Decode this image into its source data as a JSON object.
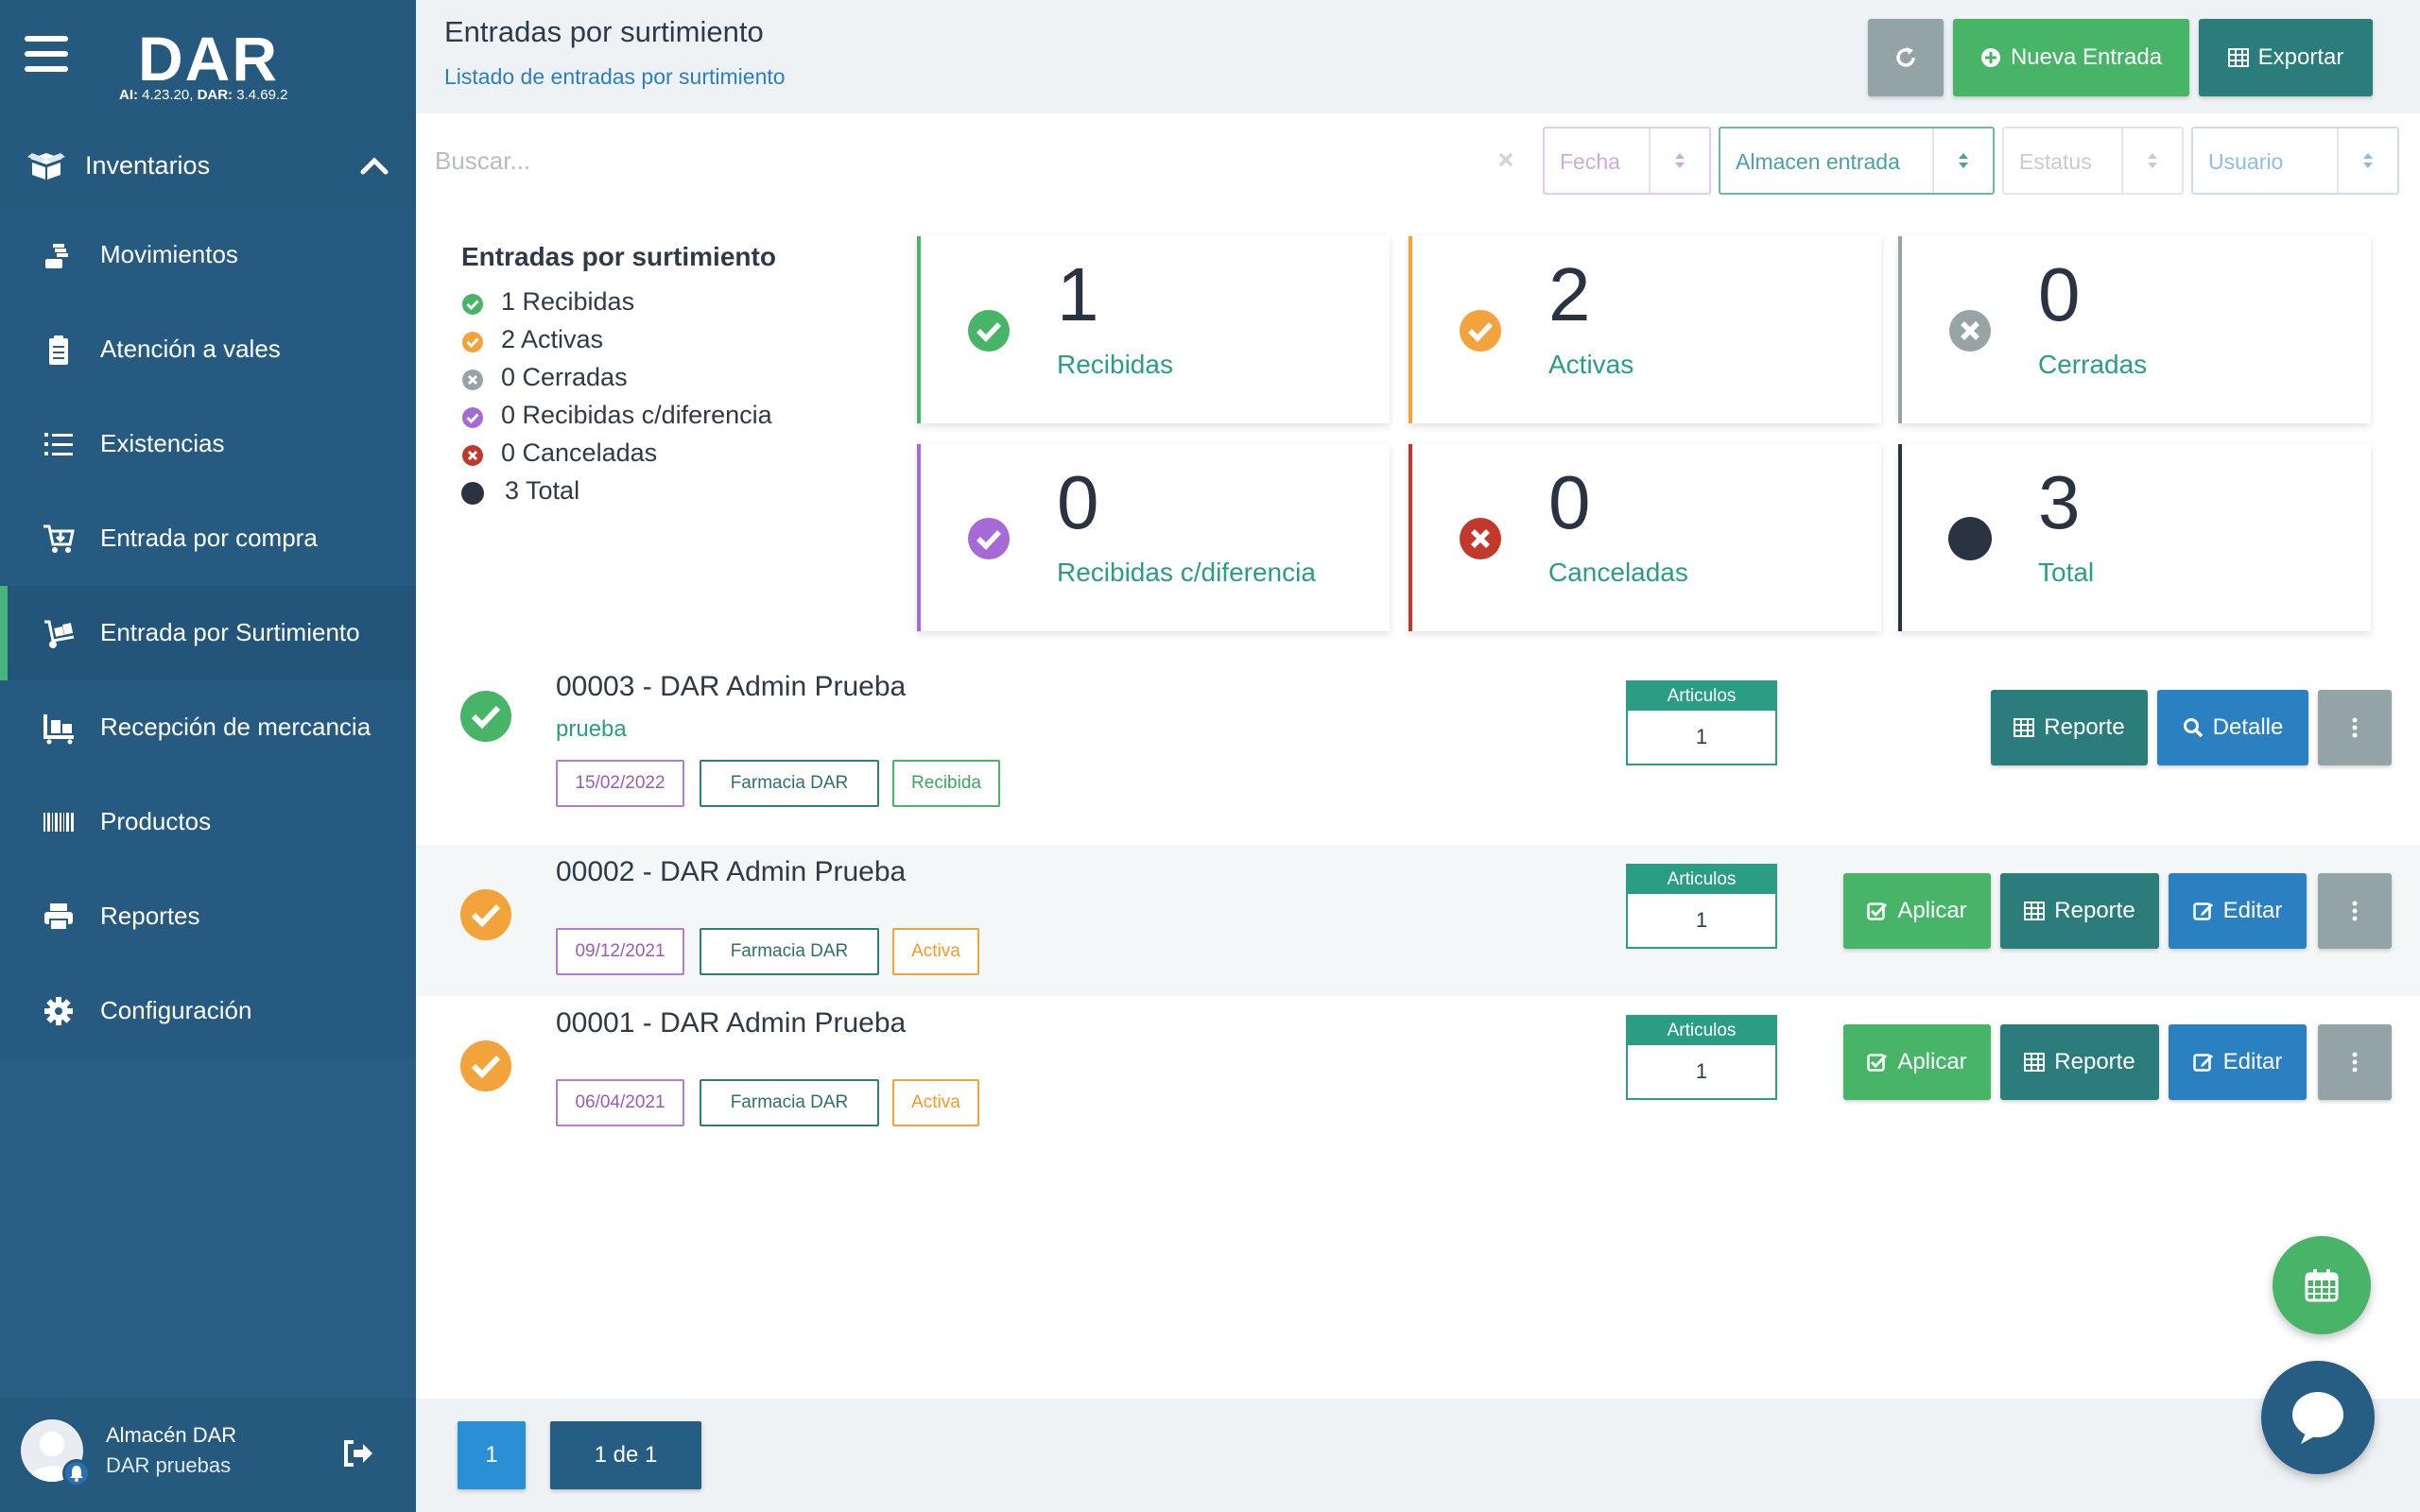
{
  "sidebar": {
    "logo": "DAR",
    "version_ai_label": "AI:",
    "version_ai": "4.23.20,",
    "version_dar_label": "DAR:",
    "version_dar": "3.4.69.2",
    "section_label": "Inventarios",
    "items": [
      {
        "label": "Movimientos",
        "icon": "hand-coins-icon"
      },
      {
        "label": "Atención a vales",
        "icon": "clipboard-icon"
      },
      {
        "label": "Existencias",
        "icon": "list-ordered-icon"
      },
      {
        "label": "Entrada por compra",
        "icon": "cart-icon"
      },
      {
        "label": "Entrada por Surtimiento",
        "icon": "dolly-icon"
      },
      {
        "label": "Recepción de mercancia",
        "icon": "pallet-icon"
      },
      {
        "label": "Productos",
        "icon": "barcode-icon"
      },
      {
        "label": "Reportes",
        "icon": "printer-icon"
      },
      {
        "label": "Configuración",
        "icon": "gear-icon"
      }
    ],
    "active_item": 4,
    "user": {
      "name": "Almacén DAR",
      "subtitle": "DAR pruebas"
    }
  },
  "header": {
    "title": "Entradas por surtimiento",
    "subtitle": "Listado de entradas por surtimiento",
    "new_label": "Nueva Entrada",
    "export_label": "Exportar"
  },
  "filters": {
    "search_placeholder": "Buscar...",
    "fecha": "Fecha",
    "almacen": "Almacen entrada",
    "estatus": "Estatus",
    "usuario": "Usuario"
  },
  "summary": {
    "title": "Entradas por surtimiento",
    "rows": [
      {
        "text": "1 Recibidas",
        "color": "#47b468"
      },
      {
        "text": "2 Activas",
        "color": "#f2a33c"
      },
      {
        "text": "0 Cerradas",
        "color": "#98a3a6"
      },
      {
        "text": "0 Recibidas c/diferencia",
        "color": "#a46ad6"
      },
      {
        "text": "0 Canceladas",
        "color": "#c0392b"
      },
      {
        "text": "3 Total",
        "color": "#2a3342"
      }
    ]
  },
  "cards": [
    {
      "num": "1",
      "label": "Recibidas",
      "color": "#47b468"
    },
    {
      "num": "2",
      "label": "Activas",
      "color": "#f2a33c"
    },
    {
      "num": "0",
      "label": "Cerradas",
      "color": "#98a3a6"
    },
    {
      "num": "0",
      "label": "Recibidas c/diferencia",
      "color": "#a46ad6"
    },
    {
      "num": "0",
      "label": "Canceladas",
      "color": "#c0392b"
    },
    {
      "num": "3",
      "label": "Total",
      "color": "#2a3342"
    }
  ],
  "entries": [
    {
      "title": "00003 - DAR Admin Prueba",
      "subtitle": "prueba",
      "date": "15/02/2022",
      "almacen": "Farmacia DAR",
      "status": "Recibida",
      "articulos_label": "Articulos",
      "articulos": "1",
      "report_label": "Reporte",
      "detail_label": "Detalle"
    },
    {
      "title": "00002 - DAR Admin Prueba",
      "date": "09/12/2021",
      "almacen": "Farmacia DAR",
      "status": "Activa",
      "articulos_label": "Articulos",
      "articulos": "1",
      "apply_label": "Aplicar",
      "report_label": "Reporte",
      "edit_label": "Editar"
    },
    {
      "title": "00001 - DAR Admin Prueba",
      "date": "06/04/2021",
      "almacen": "Farmacia DAR",
      "status": "Activa",
      "articulos_label": "Articulos",
      "articulos": "1",
      "apply_label": "Aplicar",
      "report_label": "Reporte",
      "edit_label": "Editar"
    }
  ],
  "pagination": {
    "current": "1",
    "of": "1 de 1"
  }
}
